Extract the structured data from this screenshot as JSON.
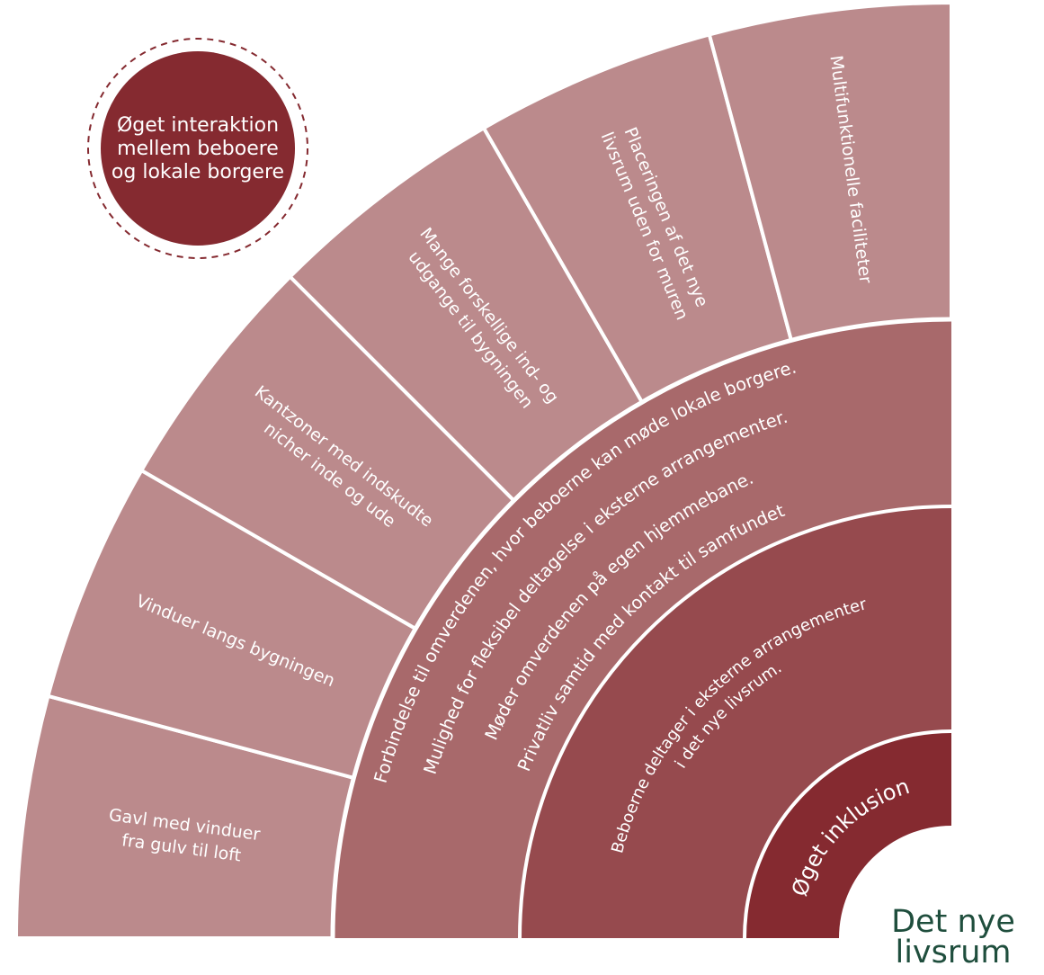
{
  "goal": {
    "lines": [
      "Øget interaktion",
      "mellem beboere",
      "og lokale borgere"
    ]
  },
  "segments": [
    {
      "lines": [
        "Gavl med vinduer",
        "fra gulv til loft"
      ]
    },
    {
      "lines": [
        "Vinduer langs bygningen"
      ]
    },
    {
      "lines": [
        "Kantzoner med indskudte",
        "nicher inde og ude"
      ]
    },
    {
      "lines": [
        "Mange forskellige ind- og",
        "udgange til bygningen"
      ]
    },
    {
      "lines": [
        "Placeringen af det nye",
        "livsrum uden for muren"
      ]
    },
    {
      "lines": [
        "Multifunktionelle faciliteter"
      ]
    }
  ],
  "ring_outcomes": {
    "lines": [
      "Forbindelse til omverdenen, hvor beboerne kan møde lokale borgere.",
      "Mulighed for fleksibel deltagelse i eksterne arrangementer.",
      "Møder omverdenen på egen hjemmebane.",
      "Privatliv samtid med kontakt til samfundet"
    ]
  },
  "ring_effect": {
    "lines": [
      "Beboerne deltager i eksterne arrangementer",
      "i det nye livsrum."
    ]
  },
  "core": {
    "label": "Øget inklusion"
  },
  "corner_title": {
    "lines": [
      "Det nye",
      "livsrum"
    ]
  }
}
